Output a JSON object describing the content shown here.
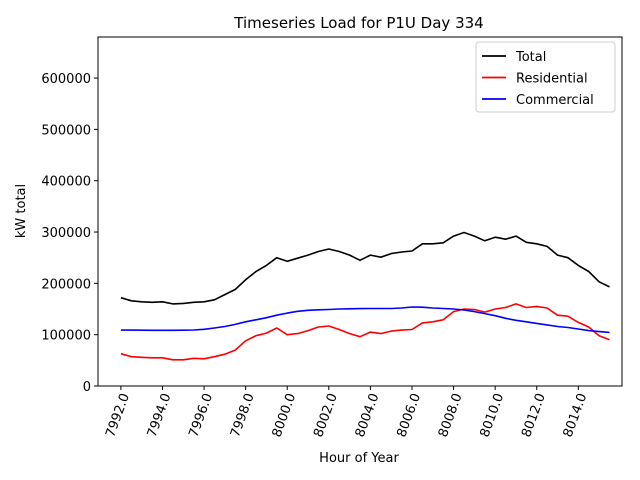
{
  "chart_data": {
    "type": "line",
    "title": "Timeseries Load for P1U   Day 334",
    "xlabel": "Hour of Year",
    "ylabel": "kW total",
    "xlim": [
      7990.9,
      8016.1
    ],
    "ylim": [
      0,
      680000
    ],
    "x_ticks": [
      7992,
      7994,
      7996,
      7998,
      8000,
      8002,
      8004,
      8006,
      8008,
      8010,
      8012,
      8014
    ],
    "x_tick_labels": [
      "7992.0",
      "7994.0",
      "7996.0",
      "7998.0",
      "8000.0",
      "8002.0",
      "8004.0",
      "8006.0",
      "8008.0",
      "8010.0",
      "8012.0",
      "8014.0"
    ],
    "y_ticks": [
      0,
      100000,
      200000,
      300000,
      400000,
      500000,
      600000
    ],
    "y_tick_labels": [
      "0",
      "100000",
      "200000",
      "300000",
      "400000",
      "500000",
      "600000"
    ],
    "grid": false,
    "legend_position": "top-right",
    "x": [
      7992,
      7992.5,
      7993,
      7993.5,
      7994,
      7994.5,
      7995,
      7995.5,
      7996,
      7996.5,
      7997,
      7997.5,
      7998,
      7998.5,
      7999,
      7999.5,
      8000,
      8000.5,
      8001,
      8001.5,
      8002,
      8002.5,
      8003,
      8003.5,
      8004,
      8004.5,
      8005,
      8005.5,
      8006,
      8006.5,
      8007,
      8007.5,
      8008,
      8008.5,
      8009,
      8009.5,
      8010,
      8010.5,
      8011,
      8011.5,
      8012,
      8012.5,
      8013,
      8013.5,
      8014,
      8014.5,
      8015,
      8015.5
    ],
    "series": [
      {
        "name": "Total",
        "color": "#000000",
        "values": [
          172000,
          166000,
          164000,
          163000,
          164000,
          160000,
          161000,
          163000,
          164000,
          168000,
          178000,
          188000,
          207000,
          223000,
          235000,
          250000,
          243000,
          249000,
          255000,
          262000,
          267000,
          262000,
          255000,
          245000,
          255000,
          251000,
          258000,
          261000,
          263000,
          277000,
          277000,
          279000,
          292000,
          299000,
          292000,
          283000,
          290000,
          286000,
          292000,
          280000,
          277000,
          272000,
          255000,
          250000,
          235000,
          223000,
          203000,
          193000
        ]
      },
      {
        "name": "Residential",
        "color": "#ff0000",
        "values": [
          63000,
          57000,
          56000,
          55000,
          55000,
          51000,
          51000,
          54000,
          53000,
          57000,
          62000,
          70000,
          88000,
          98000,
          103000,
          113000,
          100000,
          102000,
          108000,
          115000,
          117000,
          110000,
          102000,
          96000,
          105000,
          102000,
          107000,
          109000,
          110000,
          123000,
          125000,
          129000,
          145000,
          150000,
          149000,
          144000,
          150000,
          153000,
          160000,
          153000,
          155000,
          152000,
          138000,
          136000,
          124000,
          115000,
          98000,
          90000
        ]
      },
      {
        "name": "Commercial",
        "color": "#0000ff",
        "values": [
          109000,
          109000,
          108800,
          108600,
          108500,
          108500,
          108700,
          109200,
          110500,
          113000,
          116000,
          120000,
          125000,
          129000,
          133000,
          138000,
          142000,
          145500,
          147500,
          148500,
          149000,
          150000,
          150500,
          150800,
          151000,
          151000,
          151000,
          152000,
          154000,
          153500,
          152000,
          151000,
          150000,
          148000,
          145000,
          141000,
          137000,
          132000,
          128000,
          125000,
          122000,
          119000,
          116000,
          114000,
          111000,
          108000,
          106000,
          104500
        ]
      }
    ]
  }
}
